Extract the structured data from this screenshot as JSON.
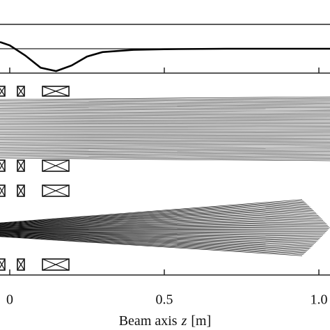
{
  "chart_data": {
    "type": "line",
    "x": [
      -0.0315,
      0,
      0.05,
      0.1,
      0.15,
      0.2,
      0.25,
      0.3,
      0.4,
      0.5,
      0.7,
      1.0,
      1.036
    ],
    "series": [
      {
        "color": "#000000",
        "values": [
          0.3,
          0.15,
          -0.3,
          -0.85,
          -1.0,
          -0.75,
          -0.35,
          -0.15,
          -0.05,
          -0.02,
          0,
          0,
          0
        ]
      }
    ],
    "xlim": [
      -0.0315,
      1.036
    ],
    "ylim": [
      -1.09,
      1.09
    ],
    "xticks": [
      0,
      0.5,
      {
        "value": 1,
        "label": "1.0"
      }
    ],
    "xlabel": "Beam axis",
    "xlabel_symbol": "z",
    "xlabel_unit": "[m]"
  }
}
